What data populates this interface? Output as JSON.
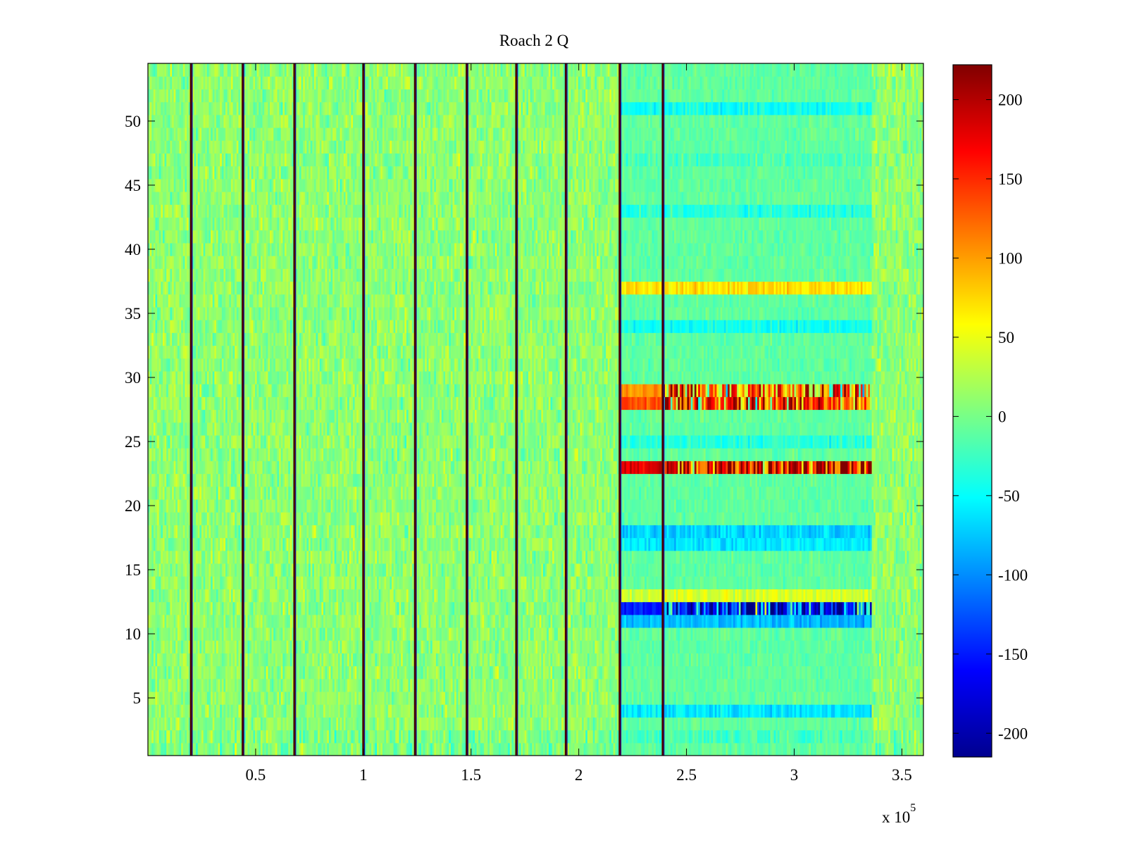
{
  "chart_data": {
    "type": "heatmap",
    "title": "Roach 2 Q",
    "xlabel": "",
    "ylabel": "",
    "x_multiplier_label": "x 10",
    "x_multiplier_exponent": "5",
    "xlim": [
      0,
      3.6
    ],
    "ylim": [
      0.5,
      54.5
    ],
    "x_ticks": [
      0.5,
      1,
      1.5,
      2,
      2.5,
      3,
      3.5
    ],
    "x_tick_labels": [
      "0.5",
      "1",
      "1.5",
      "2",
      "2.5",
      "3",
      "3.5"
    ],
    "y_ticks": [
      5,
      10,
      15,
      20,
      25,
      30,
      35,
      40,
      45,
      50
    ],
    "y_tick_labels": [
      "5",
      "10",
      "15",
      "20",
      "25",
      "30",
      "35",
      "40",
      "45",
      "50"
    ],
    "colormap": "jet",
    "clim": [
      -215,
      222
    ],
    "colorbar_ticks": [
      200,
      150,
      100,
      50,
      0,
      -50,
      -100,
      -150,
      -200
    ],
    "colorbar_tick_labels": [
      "200",
      "150",
      "100",
      "50",
      "0",
      "-50",
      "-100",
      "-150",
      "-200"
    ],
    "rows": 54,
    "background_level": 10,
    "vertical_streak_x": [
      0.2,
      0.44,
      0.68,
      1.0,
      1.24,
      1.48,
      1.71,
      1.94,
      2.19,
      2.39
    ],
    "quiet_region": [
      2.19,
      2.39
    ],
    "active_region": [
      2.39,
      3.36
    ],
    "row_offsets_in_regions": [
      {
        "row": 51,
        "level": -45
      },
      {
        "row": 47,
        "level": -20
      },
      {
        "row": 43,
        "level": -35
      },
      {
        "row": 37,
        "level": 70
      },
      {
        "row": 34,
        "level": -45
      },
      {
        "row": 29,
        "level": 110
      },
      {
        "row": 28,
        "level": 130
      },
      {
        "row": 25,
        "level": -35
      },
      {
        "row": 23,
        "level": 180
      },
      {
        "row": 18,
        "level": -70
      },
      {
        "row": 17,
        "level": -60
      },
      {
        "row": 13,
        "level": 40
      },
      {
        "row": 12,
        "level": -150
      },
      {
        "row": 11,
        "level": -80
      },
      {
        "row": 4,
        "level": -60
      },
      {
        "row": 2,
        "level": -20
      }
    ]
  }
}
